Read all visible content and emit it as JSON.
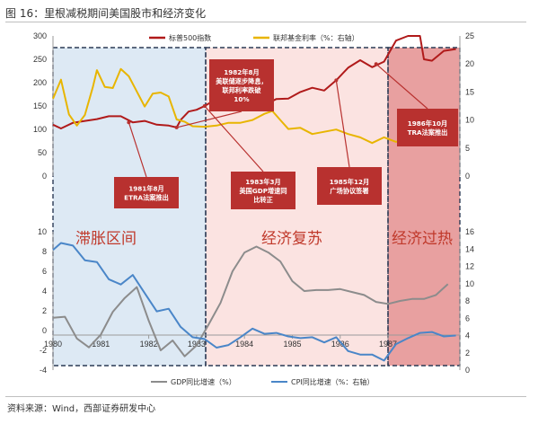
{
  "figure_title": "图 16：里根减税期间美国股市和经济变化",
  "source": "资料来源：Wind，西部证券研发中心",
  "colors": {
    "sp500": "#b01a1a",
    "fedfunds": "#e8b500",
    "gdp": "#8c8c8c",
    "cpi": "#4a86c8",
    "zone_stagflation": "#dde9f4",
    "zone_recovery": "#fbe3e1",
    "zone_overheat": "#e8a0a0",
    "annotation_box": "#b8312f",
    "phase_text": "#c0392b"
  },
  "phases": [
    "滞胀区间",
    "经济复苏",
    "经济过热"
  ],
  "chart_data": [
    {
      "type": "line",
      "legend_position": "top",
      "x_range": [
        "1980-01",
        "1988-06"
      ],
      "y_left_ticks": [
        "300",
        "250",
        "200",
        "150",
        "100",
        "50",
        "0"
      ],
      "y_right_ticks": [
        "25",
        "20",
        "15",
        "10",
        "5",
        "0"
      ],
      "ylim_left": [
        0,
        300
      ],
      "ylim_right": [
        0,
        25
      ],
      "series": [
        {
          "name": "标普500指数",
          "axis": "left",
          "color": "#b01a1a",
          "points": [
            [
              "1980-01",
              110
            ],
            [
              "1980-03",
              102
            ],
            [
              "1980-06",
              114
            ],
            [
              "1980-09",
              118
            ],
            [
              "1980-12",
              122
            ],
            [
              "1981-03",
              128
            ],
            [
              "1981-06",
              128
            ],
            [
              "1981-09",
              115
            ],
            [
              "1981-12",
              118
            ],
            [
              "1982-03",
              110
            ],
            [
              "1982-06",
              108
            ],
            [
              "1982-08",
              104
            ],
            [
              "1982-09",
              120
            ],
            [
              "1982-11",
              138
            ],
            [
              "1983-01",
              142
            ],
            [
              "1983-03",
              150
            ],
            [
              "1983-06",
              165
            ],
            [
              "1983-09",
              165
            ],
            [
              "1983-12",
              166
            ],
            [
              "1984-03",
              157
            ],
            [
              "1984-06",
              152
            ],
            [
              "1984-09",
              165
            ],
            [
              "1984-12",
              166
            ],
            [
              "1985-03",
              180
            ],
            [
              "1985-06",
              189
            ],
            [
              "1985-09",
              183
            ],
            [
              "1985-12",
              205
            ],
            [
              "1986-03",
              232
            ],
            [
              "1986-06",
              248
            ],
            [
              "1986-09",
              233
            ],
            [
              "1986-12",
              245
            ],
            [
              "1987-03",
              290
            ],
            [
              "1987-06",
              300
            ],
            [
              "1987-08",
              330
            ],
            [
              "1987-09",
              320
            ],
            [
              "1987-10",
              250
            ],
            [
              "1987-12",
              247
            ],
            [
              "1988-03",
              268
            ],
            [
              "1988-06",
              272
            ]
          ]
        },
        {
          "name": "联邦基金利率（%：右轴）",
          "axis": "right",
          "color": "#e8b500",
          "points": [
            [
              "1980-01",
              13.8
            ],
            [
              "1980-03",
              17.2
            ],
            [
              "1980-05",
              11.0
            ],
            [
              "1980-07",
              9.0
            ],
            [
              "1980-09",
              10.9
            ],
            [
              "1980-11",
              15.9
            ],
            [
              "1980-12",
              18.9
            ],
            [
              "1981-02",
              15.9
            ],
            [
              "1981-04",
              15.7
            ],
            [
              "1981-06",
              19.1
            ],
            [
              "1981-08",
              17.8
            ],
            [
              "1981-10",
              15.1
            ],
            [
              "1981-12",
              12.4
            ],
            [
              "1982-02",
              14.7
            ],
            [
              "1982-04",
              14.9
            ],
            [
              "1982-06",
              14.2
            ],
            [
              "1982-08",
              10.1
            ],
            [
              "1982-10",
              9.7
            ],
            [
              "1982-12",
              8.9
            ],
            [
              "1983-03",
              8.8
            ],
            [
              "1983-06",
              9.0
            ],
            [
              "1983-09",
              9.5
            ],
            [
              "1983-12",
              9.5
            ],
            [
              "1984-03",
              10.0
            ],
            [
              "1984-06",
              11.1
            ],
            [
              "1984-08",
              11.6
            ],
            [
              "1984-10",
              10.0
            ],
            [
              "1984-12",
              8.4
            ],
            [
              "1985-03",
              8.6
            ],
            [
              "1985-06",
              7.5
            ],
            [
              "1985-09",
              7.9
            ],
            [
              "1985-12",
              8.3
            ],
            [
              "1986-03",
              7.5
            ],
            [
              "1986-06",
              6.9
            ],
            [
              "1986-09",
              5.9
            ],
            [
              "1986-12",
              6.9
            ],
            [
              "1987-03",
              6.1
            ],
            [
              "1987-06",
              6.7
            ],
            [
              "1987-09",
              7.2
            ],
            [
              "1987-12",
              6.9
            ],
            [
              "1988-03",
              6.6
            ],
            [
              "1988-06",
              7.5
            ]
          ]
        }
      ],
      "annotations": [
        {
          "text": [
            "1981年8月",
            "ETRA法案推出"
          ],
          "point": [
            "1981-08",
            115
          ]
        },
        {
          "text": [
            "1982年8月",
            "美联储逐步降息，",
            "联邦利率跌破",
            "10%"
          ],
          "point": [
            "1982-08",
            104
          ]
        },
        {
          "text": [
            "1983年3月",
            "美国GDP增速同",
            "比转正"
          ],
          "point": [
            "1983-03",
            150
          ]
        },
        {
          "text": [
            "1985年12月",
            "广场协议签署"
          ],
          "point": [
            "1985-12",
            205
          ]
        },
        {
          "text": [
            "1986年10月",
            "TRA法案推出"
          ],
          "point": [
            "1986-10",
            240
          ]
        }
      ]
    },
    {
      "type": "line",
      "legend_position": "bottom",
      "x_ticks": [
        "1980",
        "1981",
        "1982",
        "1983",
        "1984",
        "1985",
        "1986",
        "1987"
      ],
      "y_left_ticks": [
        "10",
        "8",
        "6",
        "4",
        "2",
        "0",
        "-2",
        "-4"
      ],
      "y_right_ticks": [
        "16",
        "14",
        "12",
        "10",
        "8",
        "6",
        "4",
        "2",
        "0"
      ],
      "ylim_left": [
        -4,
        10
      ],
      "ylim_right": [
        0,
        16
      ],
      "series": [
        {
          "name": "GDP同比增速（%）",
          "axis": "left",
          "color": "#8c8c8c",
          "points": [
            [
              "1980-01",
              1.3
            ],
            [
              "1980-04",
              1.4
            ],
            [
              "1980-07",
              -0.8
            ],
            [
              "1980-10",
              -1.7
            ],
            [
              "1981-01",
              -0.4
            ],
            [
              "1981-04",
              1.9
            ],
            [
              "1981-07",
              3.3
            ],
            [
              "1981-10",
              4.4
            ],
            [
              "1982-01",
              1.0
            ],
            [
              "1982-04",
              -2.0
            ],
            [
              "1982-07",
              -1.0
            ],
            [
              "1982-10",
              -2.6
            ],
            [
              "1983-01",
              -1.5
            ],
            [
              "1983-04",
              0.6
            ],
            [
              "1983-07",
              2.8
            ],
            [
              "1983-10",
              6.0
            ],
            [
              "1984-01",
              7.9
            ],
            [
              "1984-04",
              8.5
            ],
            [
              "1984-07",
              7.9
            ],
            [
              "1984-10",
              7.0
            ],
            [
              "1985-01",
              5.0
            ],
            [
              "1985-04",
              4.0
            ],
            [
              "1985-07",
              4.1
            ],
            [
              "1985-10",
              4.1
            ],
            [
              "1986-01",
              4.2
            ],
            [
              "1986-04",
              3.9
            ],
            [
              "1986-07",
              3.6
            ],
            [
              "1986-10",
              2.9
            ],
            [
              "1987-01",
              2.7
            ],
            [
              "1987-04",
              3.0
            ],
            [
              "1987-07",
              3.2
            ],
            [
              "1987-10",
              3.2
            ],
            [
              "1988-01",
              3.6
            ],
            [
              "1988-04",
              4.7
            ]
          ]
        },
        {
          "name": "CPI同比增速（%：右轴）",
          "axis": "right",
          "color": "#4a86c8",
          "points": [
            [
              "1980-01",
              13.9
            ],
            [
              "1980-03",
              14.7
            ],
            [
              "1980-06",
              14.4
            ],
            [
              "1980-09",
              12.7
            ],
            [
              "1980-12",
              12.5
            ],
            [
              "1981-03",
              10.5
            ],
            [
              "1981-06",
              9.9
            ],
            [
              "1981-09",
              11.0
            ],
            [
              "1981-12",
              8.9
            ],
            [
              "1982-03",
              6.8
            ],
            [
              "1982-06",
              7.1
            ],
            [
              "1982-09",
              5.0
            ],
            [
              "1982-12",
              3.8
            ],
            [
              "1983-03",
              3.6
            ],
            [
              "1983-06",
              2.6
            ],
            [
              "1983-09",
              2.9
            ],
            [
              "1983-12",
              3.8
            ],
            [
              "1984-03",
              4.8
            ],
            [
              "1984-06",
              4.2
            ],
            [
              "1984-09",
              4.3
            ],
            [
              "1984-12",
              3.9
            ],
            [
              "1985-03",
              3.7
            ],
            [
              "1985-06",
              3.8
            ],
            [
              "1985-09",
              3.2
            ],
            [
              "1985-12",
              3.8
            ],
            [
              "1986-03",
              2.2
            ],
            [
              "1986-06",
              1.8
            ],
            [
              "1986-09",
              1.8
            ],
            [
              "1986-12",
              1.1
            ],
            [
              "1987-03",
              3.0
            ],
            [
              "1987-06",
              3.7
            ],
            [
              "1987-09",
              4.3
            ],
            [
              "1987-12",
              4.4
            ],
            [
              "1988-03",
              3.9
            ],
            [
              "1988-06",
              4.0
            ]
          ]
        }
      ]
    }
  ]
}
